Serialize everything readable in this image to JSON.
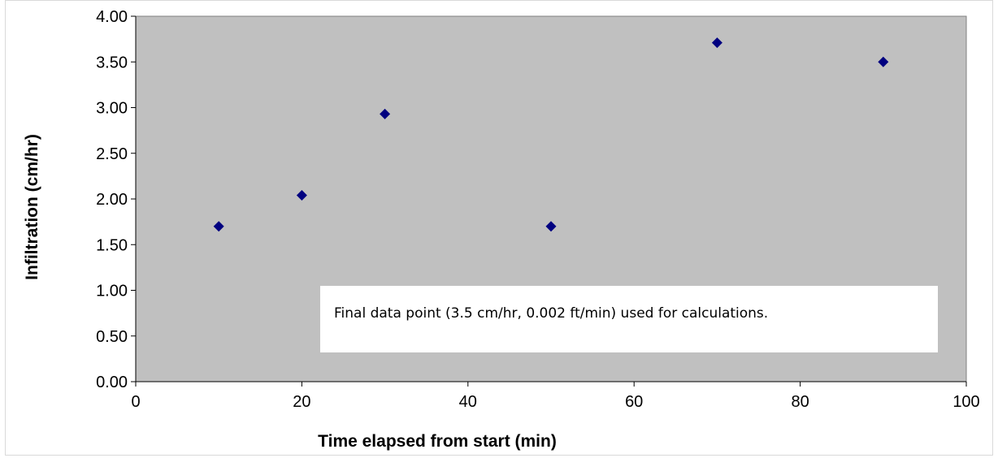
{
  "chart_data": {
    "type": "scatter",
    "title": "",
    "xlabel": "Time elapsed from start (min)",
    "ylabel": "Infiltration (cm/hr)",
    "xlim": [
      0,
      100
    ],
    "ylim": [
      0,
      4
    ],
    "xticks": [
      "0",
      "20",
      "40",
      "60",
      "80",
      "100"
    ],
    "yticks": [
      "0.00",
      "0.50",
      "1.00",
      "1.50",
      "2.00",
      "2.50",
      "3.00",
      "3.50",
      "4.00"
    ],
    "grid": false,
    "legend": "none",
    "series": [
      {
        "marker": "diamond",
        "color": "#000080",
        "points": [
          {
            "x": 10,
            "y": 1.7
          },
          {
            "x": 20,
            "y": 2.04
          },
          {
            "x": 30,
            "y": 2.93
          },
          {
            "x": 50,
            "y": 1.7
          },
          {
            "x": 70,
            "y": 3.71
          },
          {
            "x": 90,
            "y": 3.5
          }
        ]
      }
    ],
    "annotations": [
      {
        "text": "Final data point (3.5 cm/hr, 0.002 ft/min) used for calculations."
      }
    ]
  },
  "colors": {
    "plot_background": "#c0c0c0",
    "marker": "#000080",
    "annotation_box": "#ffffff"
  }
}
